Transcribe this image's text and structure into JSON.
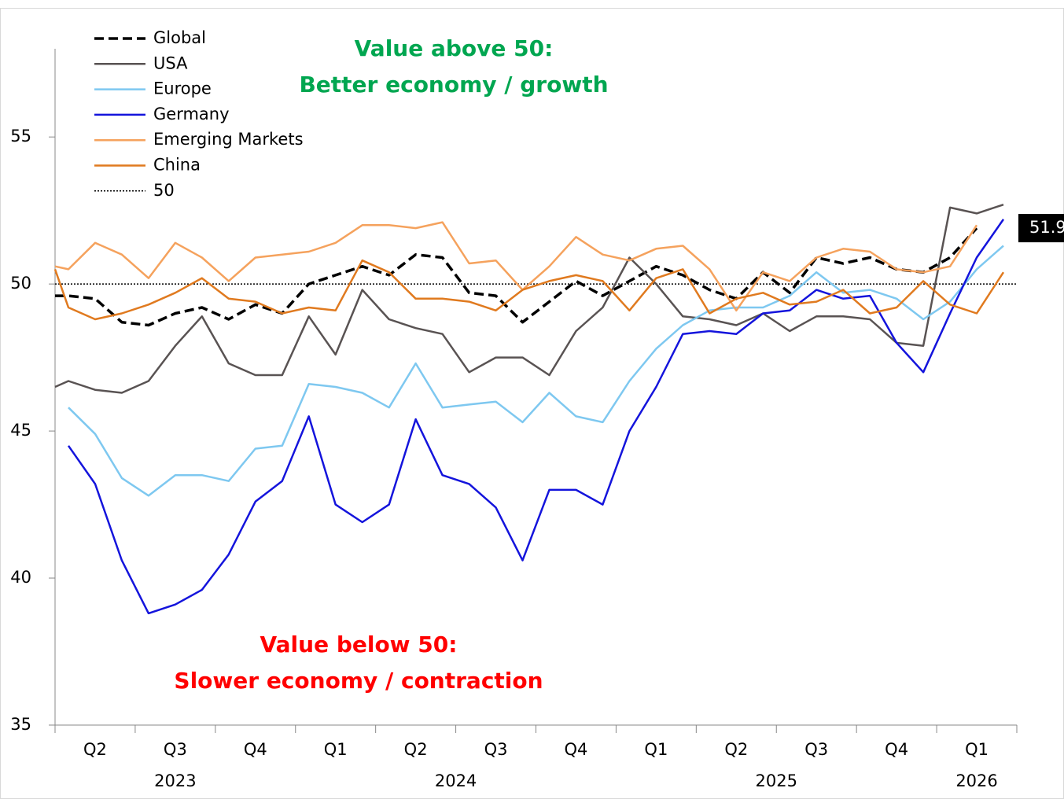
{
  "chart_data": {
    "type": "line",
    "annotations": [
      {
        "lines": [
          "Value above 50:",
          "Better economy / growth"
        ],
        "color": "#00a650"
      },
      {
        "lines": [
          "Value below 50:",
          "Slower economy / contraction"
        ],
        "color": "#ff0000"
      }
    ],
    "categories": [
      null,
      null,
      null,
      null,
      null,
      null,
      null,
      null,
      null,
      null,
      null,
      null,
      null,
      null,
      null,
      null,
      null,
      null,
      null,
      null,
      null,
      null,
      null,
      null,
      null,
      null,
      null,
      null,
      null,
      null,
      null,
      null,
      null,
      null,
      null,
      null,
      null
    ],
    "quarters": [
      "Q2",
      "Q3",
      "Q4",
      "Q1",
      "Q2",
      "Q3",
      "Q4",
      "Q1",
      "Q2",
      "Q3",
      "Q4",
      "Q1"
    ],
    "years": [
      {
        "label": "2023",
        "quarters": 3
      },
      {
        "label": "2024",
        "quarters": 4
      },
      {
        "label": "2025",
        "quarters": 4
      },
      {
        "label": "2026",
        "quarters": 1
      }
    ],
    "series": [
      {
        "name": "Global",
        "color": "#000000",
        "dash": true,
        "values": [
          49.6,
          49.6,
          49.5,
          48.7,
          48.6,
          49.0,
          49.2,
          48.8,
          49.3,
          49.0,
          50.0,
          50.3,
          50.6,
          50.3,
          51.0,
          50.9,
          49.7,
          49.6,
          48.7,
          49.4,
          50.1,
          49.6,
          50.1,
          50.6,
          50.3,
          49.8,
          49.5,
          50.4,
          49.7,
          50.9,
          50.7,
          50.9,
          50.5,
          50.4,
          50.9,
          51.9,
          null
        ]
      },
      {
        "name": "USA",
        "color": "#595353",
        "values": [
          46.5,
          46.7,
          46.4,
          46.3,
          46.7,
          47.9,
          48.9,
          47.3,
          46.9,
          46.9,
          48.9,
          47.6,
          49.8,
          48.8,
          48.5,
          48.3,
          47.0,
          47.5,
          47.5,
          46.9,
          48.4,
          49.2,
          50.9,
          50.0,
          48.9,
          48.8,
          48.6,
          49.0,
          48.4,
          48.9,
          48.9,
          48.8,
          48.0,
          47.9,
          52.6,
          52.4,
          52.7
        ]
      },
      {
        "name": "Europe",
        "color": "#7ec8f0",
        "values": [
          null,
          45.8,
          44.9,
          43.4,
          42.8,
          43.5,
          43.5,
          43.3,
          44.4,
          44.5,
          46.6,
          46.5,
          46.3,
          45.8,
          47.3,
          45.8,
          45.9,
          46.0,
          45.3,
          46.3,
          45.5,
          45.3,
          46.7,
          47.8,
          48.6,
          49.1,
          49.2,
          49.2,
          49.6,
          50.4,
          49.7,
          49.8,
          49.5,
          48.8,
          49.4,
          50.5,
          51.3
        ]
      },
      {
        "name": "Germany",
        "color": "#1414dc",
        "values": [
          null,
          44.5,
          43.2,
          40.6,
          38.8,
          39.1,
          39.6,
          40.8,
          42.6,
          43.3,
          45.5,
          42.5,
          41.9,
          42.5,
          45.4,
          43.5,
          43.2,
          42.4,
          40.6,
          43.0,
          43.0,
          42.5,
          45.0,
          46.5,
          48.3,
          48.4,
          48.3,
          49.0,
          49.1,
          49.8,
          49.5,
          49.6,
          48.0,
          47.0,
          49.0,
          50.9,
          52.2
        ]
      },
      {
        "name": "Emerging Markets",
        "color": "#f5a25d",
        "values": [
          50.6,
          50.5,
          51.4,
          51.0,
          50.2,
          51.4,
          50.9,
          50.1,
          50.9,
          51.0,
          51.1,
          51.4,
          52.0,
          52.0,
          51.9,
          52.1,
          50.7,
          50.8,
          49.8,
          50.6,
          51.6,
          51.0,
          50.8,
          51.2,
          51.3,
          50.5,
          49.1,
          50.4,
          50.1,
          50.9,
          51.2,
          51.1,
          50.5,
          50.4,
          50.6,
          52.0,
          null
        ]
      },
      {
        "name": "China",
        "color": "#e07a1f",
        "values": [
          50.5,
          49.2,
          48.8,
          49.0,
          49.3,
          49.7,
          50.2,
          49.5,
          49.4,
          49.0,
          49.2,
          49.1,
          50.8,
          50.4,
          49.5,
          49.5,
          49.4,
          49.1,
          49.8,
          50.1,
          50.3,
          50.1,
          49.1,
          50.2,
          50.5,
          49.0,
          49.5,
          49.7,
          49.3,
          49.4,
          49.8,
          49.0,
          49.2,
          50.1,
          49.3,
          49.0,
          50.4
        ]
      }
    ],
    "reference_line": {
      "name": "50",
      "value": 50,
      "color": "#000000"
    },
    "end_label": {
      "value": 51.9,
      "label": "51.9"
    },
    "ylim": [
      35,
      58
    ],
    "yticks": [
      35,
      40,
      45,
      50,
      55
    ],
    "legend": "top-left"
  }
}
